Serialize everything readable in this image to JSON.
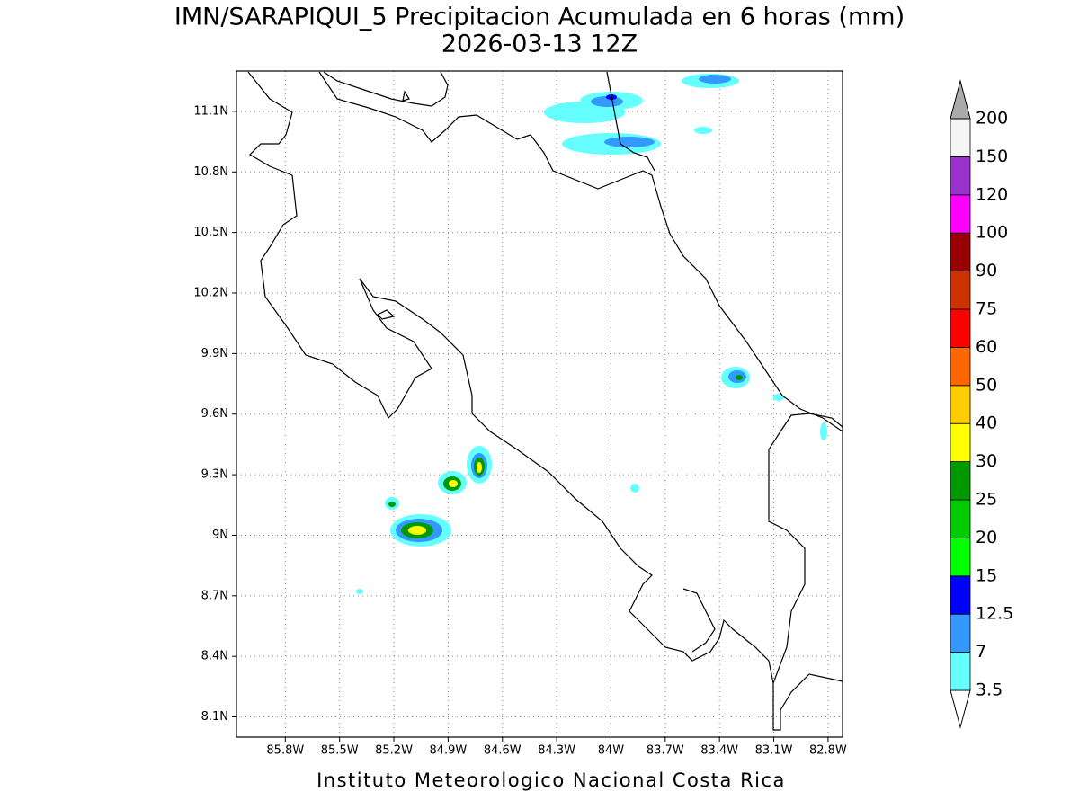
{
  "map": {
    "title": "IMN/SARAPIQUI_5 Precipitacion Acumulada en 6 horas (mm)",
    "subtitle": "2026-03-13 12Z",
    "footer": "Instituto Meteorologico Nacional Costa Rica",
    "xlim": [
      -86.07,
      -82.72
    ],
    "ylim": [
      8.0,
      11.3
    ],
    "xticks": [
      {
        "value": -85.8,
        "label": "85.8W"
      },
      {
        "value": -85.5,
        "label": "85.5W"
      },
      {
        "value": -85.2,
        "label": "85.2W"
      },
      {
        "value": -84.9,
        "label": "84.9W"
      },
      {
        "value": -84.6,
        "label": "84.6W"
      },
      {
        "value": -84.3,
        "label": "84.3W"
      },
      {
        "value": -84,
        "label": "84W"
      },
      {
        "value": -83.7,
        "label": "83.7W"
      },
      {
        "value": -83.4,
        "label": "83.4W"
      },
      {
        "value": -83.1,
        "label": "83.1W"
      },
      {
        "value": -82.8,
        "label": "82.8W"
      }
    ],
    "yticks": [
      {
        "value": 8.1,
        "label": "8.1N"
      },
      {
        "value": 8.4,
        "label": "8.4N"
      },
      {
        "value": 8.7,
        "label": "8.7N"
      },
      {
        "value": 9,
        "label": "9N"
      },
      {
        "value": 9.3,
        "label": "9.3N"
      },
      {
        "value": 9.6,
        "label": "9.6N"
      },
      {
        "value": 9.9,
        "label": "9.9N"
      },
      {
        "value": 10.2,
        "label": "10.2N"
      },
      {
        "value": 10.5,
        "label": "10.5N"
      },
      {
        "value": 10.8,
        "label": "10.8N"
      },
      {
        "value": 11.1,
        "label": "11.1N"
      }
    ],
    "grid": true,
    "colorbar": {
      "levels": [
        3.5,
        7,
        12.5,
        15,
        20,
        25,
        30,
        40,
        50,
        60,
        75,
        90,
        100,
        120,
        150,
        200
      ],
      "colors": [
        "#ffffff",
        "#66ffff",
        "#3399ff",
        "#0000ff",
        "#00ff00",
        "#00cc00",
        "#009900",
        "#ffff00",
        "#ffcc00",
        "#ff6600",
        "#ff0000",
        "#cc3300",
        "#990000",
        "#ff00ff",
        "#9933cc",
        "#f5f5f5",
        "#aaaaaa"
      ]
    }
  }
}
